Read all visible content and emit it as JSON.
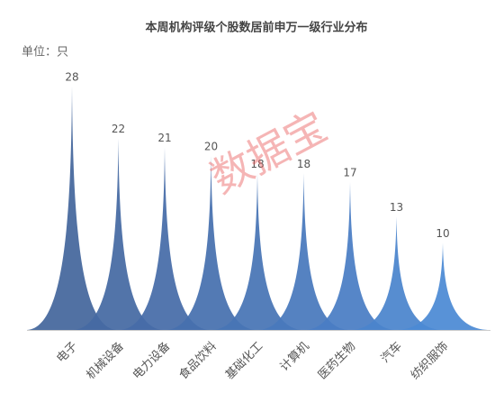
{
  "chart_data": {
    "type": "pictorial-bar",
    "title": "本周机构评级个股数居前申万一级行业分布",
    "unit_label": "单位：只",
    "watermark": "数据宝",
    "categories": [
      "电子",
      "机械设备",
      "电力设备",
      "食品饮料",
      "基础化工",
      "计算机",
      "医药生物",
      "汽车",
      "纺织服饰"
    ],
    "values": [
      28,
      22,
      21,
      20,
      18,
      18,
      17,
      13,
      10
    ],
    "colors": [
      "#44669c",
      "#4569a2",
      "#466ca8",
      "#4670ae",
      "#4774b5",
      "#4878bc",
      "#497dc4",
      "#4a84cc",
      "#4b8ad4"
    ]
  }
}
